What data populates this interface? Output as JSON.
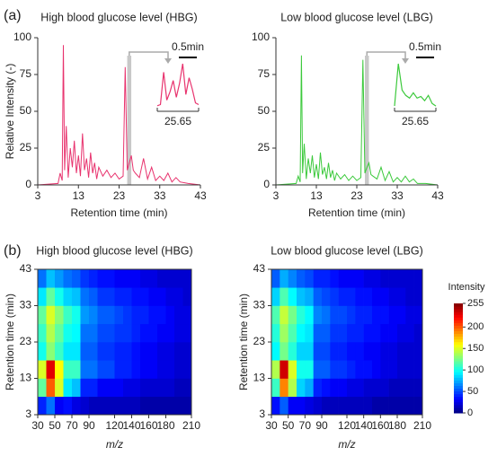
{
  "panel_labels": [
    "(a)",
    "(b)"
  ],
  "chart_data": [
    {
      "type": "line",
      "title": "High blood glucose level (HBG)",
      "x_label": "Retention time (min)",
      "y_label": "Relative Intensity (-)",
      "xlim": [
        3,
        43
      ],
      "xticks": [
        3,
        13,
        23,
        33,
        43
      ],
      "ylim": [
        0,
        100
      ],
      "yticks": [
        0,
        25,
        50,
        75,
        100
      ],
      "series": [
        {
          "color": "#e8336e",
          "x": [
            3,
            8,
            8.5,
            9,
            9.3,
            9.6,
            10,
            10.5,
            11,
            11.5,
            12,
            12.5,
            13,
            13.5,
            14,
            14.5,
            15,
            15.5,
            16,
            16.5,
            17,
            17.5,
            18,
            19,
            20,
            21,
            22,
            23,
            24,
            24.5,
            25,
            25.5,
            26,
            26.5,
            27,
            28,
            29,
            30,
            31,
            32,
            33,
            34,
            35,
            36,
            37,
            38,
            40,
            43
          ],
          "values": [
            0,
            1,
            8,
            3,
            95,
            10,
            40,
            5,
            25,
            12,
            30,
            8,
            20,
            6,
            35,
            10,
            18,
            5,
            22,
            8,
            15,
            4,
            12,
            6,
            10,
            5,
            8,
            4,
            6,
            80,
            10,
            15,
            20,
            10,
            8,
            5,
            18,
            4,
            12,
            3,
            6,
            3,
            8,
            2,
            5,
            2,
            1,
            0
          ]
        }
      ],
      "inset": {
        "label": "25.65",
        "scale_label": "0.5min",
        "values": [
          10,
          12,
          70,
          20,
          35,
          55,
          25,
          50,
          85,
          30,
          60,
          40,
          15,
          12
        ]
      }
    },
    {
      "type": "line",
      "title": "Low blood glucose level (LBG)",
      "x_label": "Retention time (min)",
      "xlim": [
        3,
        43
      ],
      "xticks": [
        3,
        13,
        23,
        33,
        43
      ],
      "ylim": [
        0,
        100
      ],
      "yticks": [
        0,
        25,
        50,
        75,
        100
      ],
      "series": [
        {
          "color": "#3cc93c",
          "x": [
            3,
            8,
            8.5,
            9,
            9.3,
            9.6,
            10,
            10.5,
            11,
            11.5,
            12,
            12.5,
            13,
            13.5,
            14,
            14.5,
            15,
            15.5,
            16,
            16.5,
            17,
            17.5,
            18,
            19,
            20,
            21,
            22,
            23,
            24,
            24.5,
            25,
            25.5,
            26,
            26.5,
            27,
            28,
            29,
            30,
            31,
            32,
            33,
            34,
            35,
            36,
            37,
            38,
            40,
            43
          ],
          "values": [
            0,
            1,
            6,
            2,
            88,
            8,
            28,
            4,
            18,
            8,
            20,
            5,
            14,
            4,
            22,
            7,
            12,
            4,
            15,
            5,
            10,
            3,
            8,
            4,
            7,
            3,
            6,
            3,
            5,
            85,
            8,
            12,
            15,
            7,
            6,
            4,
            12,
            3,
            9,
            2,
            5,
            2,
            6,
            2,
            4,
            1,
            1,
            0
          ]
        }
      ],
      "inset": {
        "label": "25.65",
        "scale_label": "0.5min",
        "values": [
          10,
          90,
          40,
          30,
          25,
          35,
          25,
          28,
          20,
          30,
          15,
          10
        ]
      }
    },
    {
      "type": "heatmap",
      "title": "High blood glucose level (HBG)",
      "x_label": "m/z",
      "y_label": "Retention time (min)",
      "xlim": [
        30,
        210
      ],
      "xticks": [
        30,
        50,
        70,
        90,
        120,
        140,
        160,
        180,
        210
      ],
      "ylim": [
        3,
        43
      ],
      "yticks": [
        3,
        13,
        23,
        33,
        43
      ],
      "x_bins": [
        30,
        40,
        50,
        60,
        70,
        80,
        90,
        100,
        110,
        120,
        130,
        140,
        150,
        160,
        170,
        180,
        190,
        200,
        210
      ],
      "y_bins": [
        3,
        8,
        13,
        18,
        23,
        28,
        33,
        38,
        43
      ],
      "z": [
        [
          40,
          60,
          30,
          35,
          25,
          20,
          15,
          15,
          15,
          15,
          15,
          15,
          10,
          10,
          10,
          10,
          10,
          10
        ],
        [
          120,
          200,
          150,
          90,
          80,
          40,
          40,
          30,
          30,
          30,
          25,
          25,
          20,
          20,
          20,
          20,
          15,
          15
        ],
        [
          150,
          230,
          160,
          110,
          110,
          60,
          60,
          50,
          50,
          40,
          40,
          35,
          30,
          30,
          25,
          25,
          20,
          20
        ],
        [
          100,
          130,
          110,
          90,
          90,
          55,
          55,
          45,
          45,
          40,
          40,
          35,
          30,
          30,
          25,
          25,
          20,
          20
        ],
        [
          110,
          140,
          120,
          100,
          95,
          60,
          60,
          50,
          50,
          45,
          45,
          40,
          35,
          35,
          30,
          30,
          25,
          25
        ],
        [
          120,
          150,
          130,
          110,
          100,
          70,
          65,
          55,
          55,
          50,
          45,
          40,
          40,
          35,
          35,
          30,
          25,
          25
        ],
        [
          90,
          120,
          100,
          85,
          80,
          60,
          55,
          45,
          45,
          40,
          40,
          35,
          35,
          30,
          30,
          25,
          25,
          20
        ],
        [
          60,
          80,
          70,
          60,
          55,
          45,
          40,
          35,
          35,
          30,
          30,
          30,
          25,
          25,
          20,
          20,
          20,
          20
        ]
      ],
      "clim": [
        0,
        255
      ]
    },
    {
      "type": "heatmap",
      "title": "Low blood glucose level (LBG)",
      "x_label": "m/z",
      "y_label": "Retention time (min)",
      "xlim": [
        30,
        210
      ],
      "xticks": [
        30,
        50,
        70,
        90,
        120,
        140,
        160,
        180,
        210
      ],
      "ylim": [
        3,
        43
      ],
      "yticks": [
        3,
        13,
        23,
        33,
        43
      ],
      "x_bins": [
        30,
        40,
        50,
        60,
        70,
        80,
        90,
        100,
        110,
        120,
        130,
        140,
        150,
        160,
        170,
        180,
        190,
        200,
        210
      ],
      "y_bins": [
        3,
        8,
        13,
        18,
        23,
        28,
        33,
        38,
        43
      ],
      "z": [
        [
          35,
          55,
          30,
          30,
          25,
          20,
          15,
          15,
          15,
          15,
          15,
          15,
          10,
          10,
          10,
          10,
          10,
          10
        ],
        [
          110,
          190,
          140,
          85,
          75,
          40,
          35,
          30,
          30,
          25,
          25,
          20,
          20,
          20,
          15,
          15,
          15,
          15
        ],
        [
          140,
          235,
          150,
          100,
          100,
          55,
          55,
          45,
          45,
          40,
          35,
          35,
          30,
          25,
          25,
          20,
          20,
          20
        ],
        [
          95,
          125,
          105,
          85,
          85,
          50,
          50,
          40,
          40,
          35,
          35,
          30,
          30,
          25,
          25,
          20,
          20,
          20
        ],
        [
          105,
          135,
          115,
          95,
          90,
          55,
          55,
          45,
          45,
          40,
          40,
          35,
          35,
          30,
          30,
          25,
          25,
          20
        ],
        [
          115,
          145,
          125,
          105,
          95,
          65,
          60,
          50,
          50,
          45,
          40,
          40,
          35,
          35,
          30,
          30,
          25,
          25
        ],
        [
          85,
          115,
          95,
          80,
          75,
          55,
          50,
          45,
          40,
          40,
          35,
          35,
          30,
          30,
          25,
          25,
          20,
          20
        ],
        [
          55,
          75,
          65,
          55,
          50,
          40,
          40,
          35,
          30,
          30,
          30,
          25,
          25,
          20,
          20,
          20,
          20,
          20
        ]
      ],
      "clim": [
        0,
        255
      ],
      "colorbar": {
        "title": "Intensity",
        "lim": [
          0,
          255
        ],
        "ticks": [
          0,
          50,
          100,
          150,
          200,
          255
        ]
      }
    }
  ]
}
